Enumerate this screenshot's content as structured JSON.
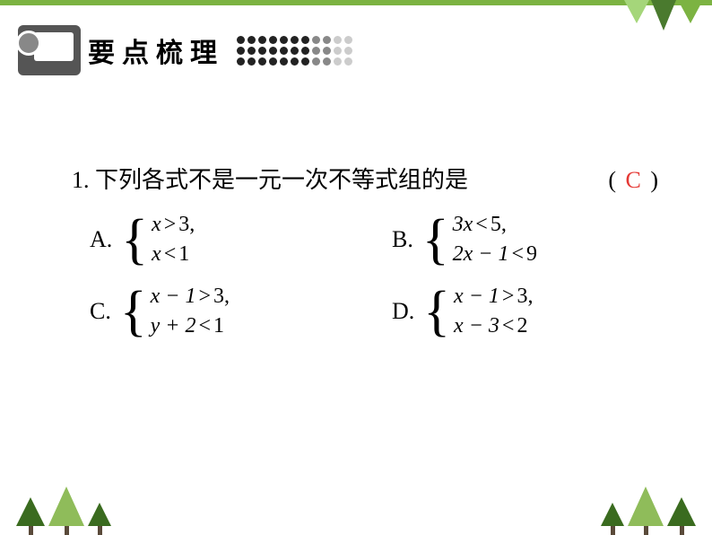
{
  "colors": {
    "border_green": "#7cb342",
    "tri_dark": "#4a7a2e",
    "tri_mid": "#7cb342",
    "tri_light": "#a5d67a",
    "tree_dark": "#3a6b1f",
    "tree_light": "#8fbc5a",
    "answer_red": "#e53935",
    "text_black": "#000000",
    "dot_dark": "#222222",
    "dot_mid": "#888888",
    "dot_light": "#cccccc"
  },
  "header": {
    "title": "要点梳理"
  },
  "question": {
    "number": "1.",
    "text": "下列各式不是一元一次不等式组的是",
    "answer": "C",
    "paren_left": "(",
    "paren_right": ")"
  },
  "options": {
    "A": {
      "label": "A.",
      "line1": {
        "lhs": "x",
        "op": ">",
        "rhs": "3",
        "comma": ","
      },
      "line2": {
        "lhs": "x",
        "op": "<",
        "rhs": "1"
      }
    },
    "B": {
      "label": "B.",
      "line1": {
        "lhs": "3x",
        "op": "<",
        "rhs": "5",
        "comma": ","
      },
      "line2": {
        "lhs": "2x − 1",
        "op": "<",
        "rhs": "9"
      }
    },
    "C": {
      "label": "C.",
      "line1": {
        "lhs": "x − 1",
        "op": ">",
        "rhs": "3",
        "comma": ","
      },
      "line2": {
        "lhs": "y + 2",
        "op": "<",
        "rhs": "1"
      }
    },
    "D": {
      "label": "D.",
      "line1": {
        "lhs": "x − 1",
        "op": ">",
        "rhs": "3",
        "comma": ","
      },
      "line2": {
        "lhs": "x − 3",
        "op": "<",
        "rhs": "2"
      }
    }
  },
  "dots": {
    "rows": 3,
    "cols": 11,
    "fade_cols": [
      7,
      8,
      9,
      10
    ]
  }
}
